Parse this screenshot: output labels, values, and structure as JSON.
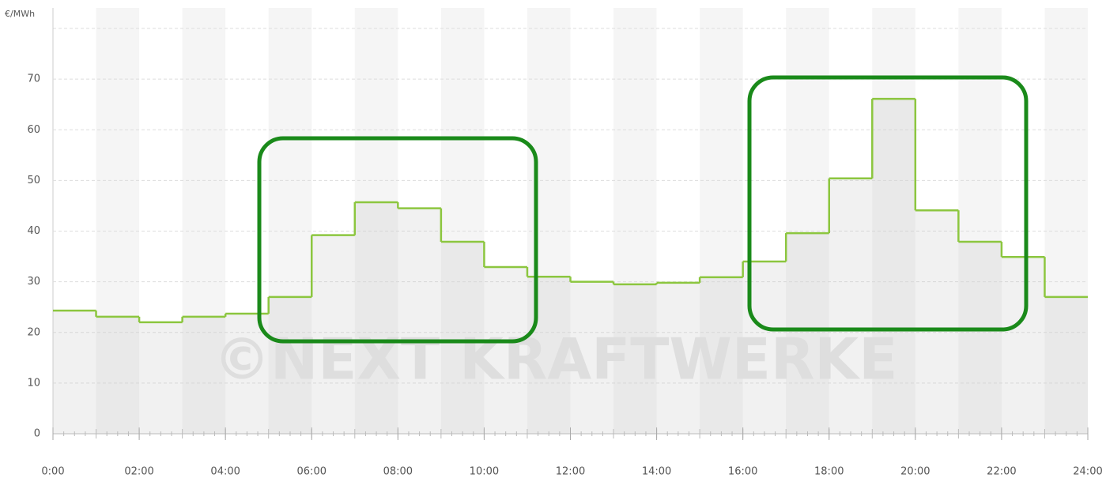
{
  "chart_data": {
    "type": "line",
    "step": "post",
    "y_unit": "€/MWh",
    "watermark": "©NEXT KRAFTWERKE",
    "x": [
      0,
      1,
      2,
      3,
      4,
      5,
      6,
      7,
      8,
      9,
      10,
      11,
      12,
      13,
      14,
      15,
      16,
      17,
      18,
      19,
      20,
      21,
      22,
      23
    ],
    "values": [
      24.3,
      23.1,
      22.0,
      23.1,
      23.7,
      27.0,
      39.2,
      45.7,
      44.5,
      37.9,
      32.9,
      31.0,
      30.0,
      29.5,
      29.8,
      30.9,
      34.0,
      39.6,
      50.4,
      66.1,
      44.1,
      37.9,
      34.9,
      27.0
    ],
    "color": "#8cc63f",
    "xlim": [
      0,
      24
    ],
    "xticks": [
      {
        "value": 0,
        "label": "0:00"
      },
      {
        "value": 2,
        "label": "02:00"
      },
      {
        "value": 4,
        "label": "04:00"
      },
      {
        "value": 6,
        "label": "06:00"
      },
      {
        "value": 8,
        "label": "08:00"
      },
      {
        "value": 10,
        "label": "10:00"
      },
      {
        "value": 12,
        "label": "12:00"
      },
      {
        "value": 14,
        "label": "14:00"
      },
      {
        "value": 16,
        "label": "16:00"
      },
      {
        "value": 18,
        "label": "18:00"
      },
      {
        "value": 20,
        "label": "20:00"
      },
      {
        "value": 22,
        "label": "22:00"
      },
      {
        "value": 24,
        "label": "24:00"
      }
    ],
    "ylim": [
      0,
      80
    ],
    "yticks": [
      0,
      10,
      20,
      30,
      40,
      50,
      60,
      70
    ],
    "grid": true
  }
}
